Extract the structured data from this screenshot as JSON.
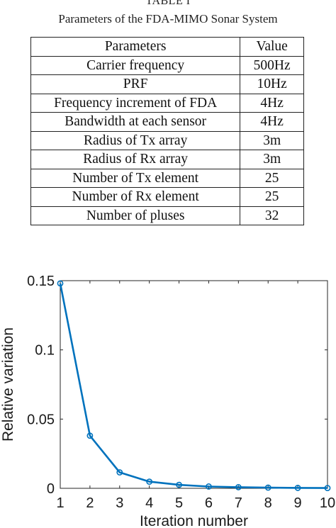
{
  "caption": {
    "label": "TABLE I",
    "title": "Parameters of the FDA-MIMO Sonar System"
  },
  "table": {
    "headers": [
      "Parameters",
      "Value"
    ],
    "rows": [
      [
        "Carrier frequency",
        "500Hz"
      ],
      [
        "PRF",
        "10Hz"
      ],
      [
        "Frequency increment of FDA",
        "4Hz"
      ],
      [
        "Bandwidth at each sensor",
        "4Hz"
      ],
      [
        "Radius of Tx array",
        "3m"
      ],
      [
        "Radius of Rx array",
        "3m"
      ],
      [
        "Number of Tx element",
        "25"
      ],
      [
        "Number of Rx element",
        "25"
      ],
      [
        "Number of pluses",
        "32"
      ]
    ]
  },
  "chart_data": {
    "type": "line",
    "x": [
      1,
      2,
      3,
      4,
      5,
      6,
      7,
      8,
      9,
      10
    ],
    "series": [
      {
        "values": [
          0.148,
          0.038,
          0.0115,
          0.0048,
          0.0025,
          0.0013,
          0.0008,
          0.0005,
          0.0003,
          0.0002
        ]
      }
    ],
    "xlabel": "Iteration number",
    "ylabel": "Relative variation",
    "xlim": [
      1,
      10
    ],
    "ylim": [
      0,
      0.15
    ],
    "xticks": [
      "1",
      "2",
      "3",
      "4",
      "5",
      "6",
      "7",
      "8",
      "9",
      "10"
    ],
    "yticks": [
      "0",
      "0.05",
      "0.1",
      "0.15"
    ],
    "grid": false,
    "line_color": "#0072BD",
    "marker": "circle"
  }
}
